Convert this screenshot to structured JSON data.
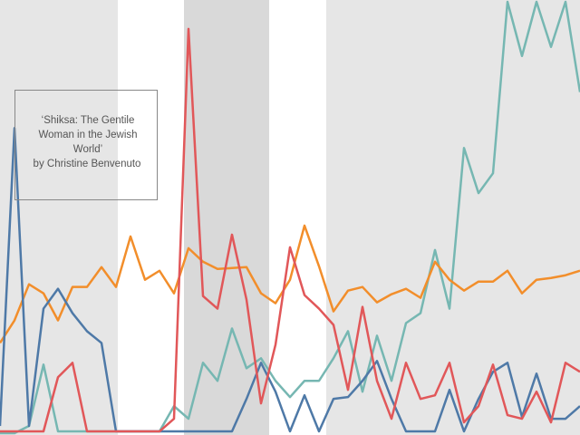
{
  "chart_data": {
    "type": "line",
    "annotation": [
      "‘Shiksa: The Gentile",
      "Woman in the Jewish",
      "World’",
      "by Christine Benvenuto"
    ],
    "categories": [
      null,
      null,
      null,
      null,
      null,
      null,
      null,
      null,
      null,
      null,
      null,
      null,
      null,
      null,
      null,
      null,
      null,
      null,
      null,
      null,
      null,
      null,
      null,
      null,
      null,
      null,
      null,
      null,
      null,
      null,
      null,
      null,
      null,
      null,
      null,
      null,
      null,
      null,
      null,
      null,
      null
    ],
    "ylim": [
      0,
      480
    ],
    "series": [
      {
        "color": "#76b7b2",
        "values": [
          0,
          0,
          8,
          76,
          2,
          2,
          2,
          2,
          2,
          2,
          2,
          2,
          30,
          16,
          78,
          58,
          116,
          72,
          83,
          58,
          40,
          58,
          58,
          83,
          113,
          46,
          108,
          58,
          122,
          133,
          203,
          138,
          316,
          266,
          288,
          478,
          418,
          478,
          428,
          478,
          378
        ]
      },
      {
        "color": "#f28e2b",
        "values": [
          100,
          125,
          165,
          155,
          125,
          162,
          162,
          184,
          162,
          218,
          170,
          180,
          155,
          205,
          190,
          182,
          183,
          184,
          155,
          144,
          170,
          230,
          185,
          135,
          158,
          162,
          145,
          154,
          160,
          150,
          190,
          170,
          158,
          168,
          168,
          180,
          155,
          170,
          172,
          175,
          180
        ]
      },
      {
        "color": "#4e79a7",
        "values": [
          8,
          338,
          8,
          138,
          160,
          133,
          113,
          100,
          2,
          2,
          2,
          2,
          2,
          2,
          2,
          2,
          2,
          38,
          78,
          46,
          2,
          42,
          2,
          38,
          40,
          58,
          80,
          38,
          2,
          2,
          2,
          48,
          2,
          38,
          68,
          78,
          18,
          66,
          16,
          16,
          30
        ]
      },
      {
        "color": "#e15759",
        "values": [
          2,
          2,
          2,
          2,
          62,
          78,
          2,
          2,
          2,
          2,
          2,
          2,
          16,
          448,
          152,
          138,
          220,
          148,
          33,
          98,
          206,
          153,
          138,
          120,
          48,
          140,
          58,
          16,
          78,
          38,
          42,
          78,
          12,
          30,
          76,
          20,
          16,
          46,
          12,
          78,
          68
        ]
      }
    ]
  }
}
